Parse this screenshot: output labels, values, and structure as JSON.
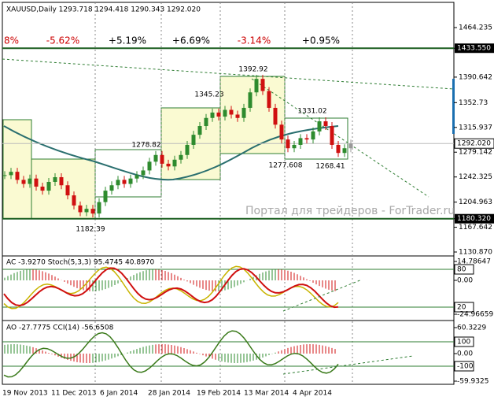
{
  "header": "XAUUSD,Daily  1293.718 1294.418 1290.343 1292.020",
  "chart_data": {
    "type": "candlestick",
    "closes": [
      1245,
      1250,
      1238,
      1232,
      1240,
      1228,
      1222,
      1235,
      1242,
      1230,
      1215,
      1200,
      1190,
      1195,
      1188,
      1205,
      1222,
      1230,
      1238,
      1232,
      1240,
      1245,
      1252,
      1265,
      1275,
      1262,
      1258,
      1268,
      1275,
      1290,
      1305,
      1318,
      1330,
      1338,
      1332,
      1342,
      1335,
      1330,
      1345,
      1368,
      1388,
      1370,
      1345,
      1320,
      1298,
      1285,
      1290,
      1300,
      1298,
      1310,
      1325,
      1318,
      1290,
      1278,
      1285,
      1292
    ],
    "ylim": [
      1130.87,
      1464.235
    ],
    "yticks": [
      1464.235,
      {
        "value": 1433.55,
        "label": "1433.550"
      },
      1390.642,
      1352.73,
      1315.937,
      {
        "value": 1292.02,
        "label": "1292.020"
      },
      1279.142,
      1242.325,
      1204.963,
      {
        "value": 1180.32,
        "label": "1180.320"
      },
      1167.642,
      {
        "value": 1130.87,
        "label": "1130.870"
      }
    ],
    "levels": [
      {
        "value": 1433.55,
        "label": "1433.550"
      },
      {
        "value": 1180.32,
        "label": "1180.320"
      }
    ],
    "current": {
      "value": 1292.02,
      "label": "1292.020"
    },
    "period_changes": [
      "8%",
      "-5.62%",
      "+5.19%",
      "+6.69%",
      "-3.14%",
      "+0.95%"
    ],
    "price_labels": [
      "1392.92",
      "1345.23",
      "1331.02",
      "1278.82",
      "1277.608",
      "1268.41",
      "1182.39"
    ],
    "dates": [
      "19 Nov 2013",
      "11 Dec 2013",
      "6 Jan 2014",
      "28 Jan 2014",
      "19 Feb 2014",
      "13 Mar 2014",
      "4 Apr 2014"
    ]
  },
  "watermark": "Портал для трейдеров - ForTrader.ru",
  "ac_panel": {
    "header": "AC -3.9270  Stoch(5,3,3) 95.4745 40.8970",
    "ticks": [
      "14.78647",
      "80",
      "0.00",
      "20",
      "-24.96659"
    ]
  },
  "ao_panel": {
    "header": "AO -27.7775  CCI(14) -56.6508",
    "ticks": [
      "60.3229",
      "100",
      "0.00",
      "-100",
      "-59.9325"
    ]
  }
}
